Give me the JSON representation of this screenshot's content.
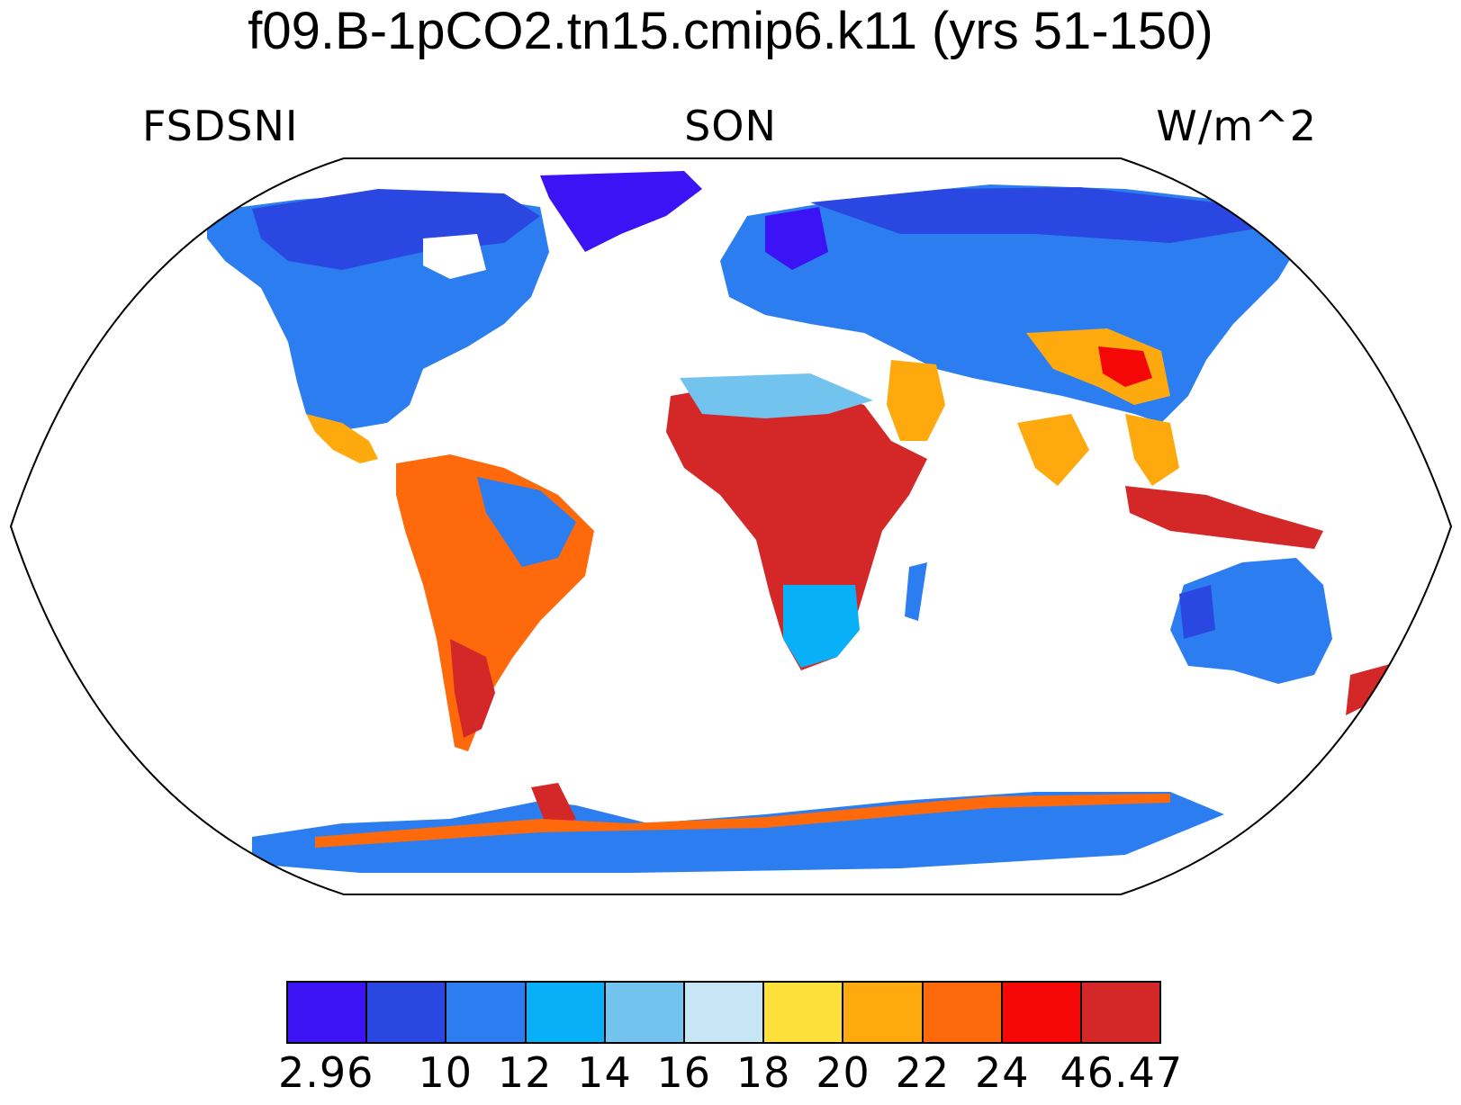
{
  "title": "f09.B-1pCO2.tn15.cmip6.k11 (yrs 51-150)",
  "left_string": "FSDSNI",
  "center_string": "SON",
  "right_string": "W/m^2",
  "colorbar": {
    "colors": [
      "#3c13f4",
      "#2b47e2",
      "#2c7ef0",
      "#08b1f7",
      "#72c3ee",
      "#c6e6f6",
      "#fde03a",
      "#fea90d",
      "#fe6a0b",
      "#f60707",
      "#d42828"
    ],
    "labels": [
      "2.96",
      "10",
      "12",
      "14",
      "16",
      "18",
      "20",
      "22",
      "24",
      "46.47"
    ]
  },
  "map": {
    "projection": "Robinson",
    "missing_color": "#ffffff"
  }
}
